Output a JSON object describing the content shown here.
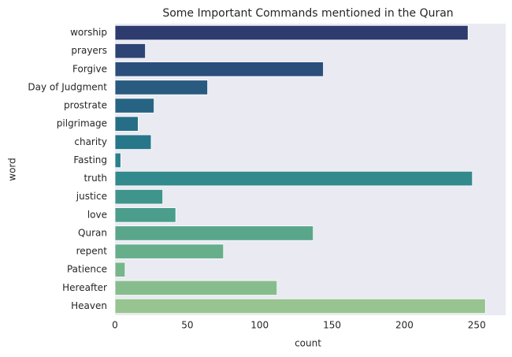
{
  "chart_data": {
    "type": "barh",
    "title": "Some Important Commands mentioned in the Quran",
    "x_label": "count",
    "y_label": "word",
    "categories": [
      "worship",
      "prayers",
      "Forgive",
      "Day of Judgment",
      "prostrate",
      "pilgrimage",
      "charity",
      "Fasting",
      "truth",
      "justice",
      "love",
      "Quran",
      "repent",
      "Patience",
      "Hereafter",
      "Heaven"
    ],
    "values": [
      244,
      21,
      144,
      64,
      27,
      16,
      25,
      4,
      247,
      33,
      42,
      137,
      75,
      7,
      112,
      256
    ],
    "colors": [
      "#2d3b6e",
      "#2c4575",
      "#2b4f7b",
      "#295a80",
      "#276484",
      "#266e88",
      "#27778a",
      "#2a818b",
      "#338a8c",
      "#3f948c",
      "#4b9d8c",
      "#59a68b",
      "#67ae8b",
      "#77b68b",
      "#87bd8d",
      "#97c490"
    ],
    "xlim": [
      0,
      270
    ],
    "xticks": [
      0,
      50,
      100,
      150,
      200,
      250
    ],
    "grid": false
  }
}
